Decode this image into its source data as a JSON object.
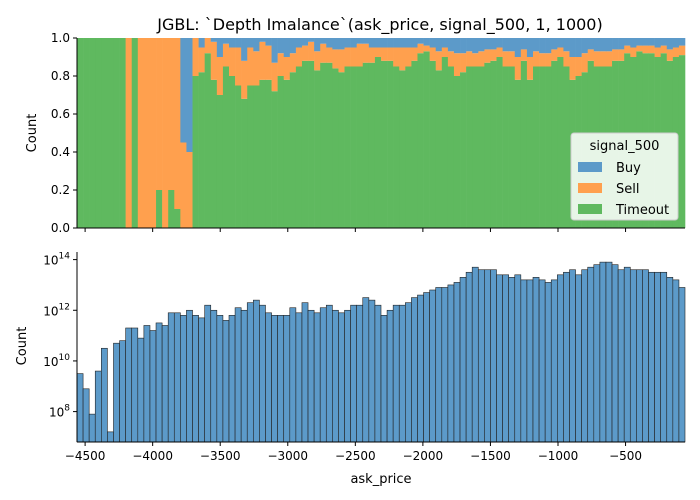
{
  "title": "JGBL: `Depth Imalance`(ask_price, signal_500, 1, 1000)",
  "colors": {
    "Buy": "#5c9ac9",
    "Sell": "#ffa04e",
    "Timeout": "#5fb95f",
    "hist": "#5c9ac9",
    "edge": "#222222"
  },
  "chart_data": [
    {
      "type": "bar",
      "name": "proportion-stacked-histogram",
      "xlim": [
        -4560,
        -60
      ],
      "ylim": [
        0,
        1
      ],
      "ylabel": "Count",
      "yticks": [
        0.0,
        0.2,
        0.4,
        0.6,
        0.8,
        1.0
      ],
      "ytick_labels": [
        "0.0",
        "0.2",
        "0.4",
        "0.6",
        "0.8",
        "1.0"
      ],
      "bin_start": -4560,
      "bin_width": 45,
      "legend": {
        "title": "signal_500",
        "entries": [
          "Buy",
          "Sell",
          "Timeout"
        ],
        "placement": "right"
      },
      "series": [
        {
          "name": "Timeout",
          "values": [
            1.0,
            1.0,
            1.0,
            1.0,
            1.0,
            1.0,
            1.0,
            1.0,
            0.0,
            1.0,
            0.0,
            0.0,
            0.0,
            0.2,
            0.0,
            0.2,
            0.1,
            0.0,
            0.0,
            0.8,
            0.82,
            0.92,
            0.78,
            0.7,
            0.85,
            0.8,
            0.75,
            0.68,
            0.75,
            0.75,
            0.78,
            0.78,
            0.72,
            0.8,
            0.78,
            0.82,
            0.85,
            0.88,
            0.88,
            0.83,
            0.87,
            0.87,
            0.84,
            0.82,
            0.85,
            0.85,
            0.85,
            0.87,
            0.87,
            0.9,
            0.88,
            0.88,
            0.85,
            0.83,
            0.85,
            0.88,
            0.92,
            0.93,
            0.88,
            0.83,
            0.9,
            0.85,
            0.8,
            0.82,
            0.85,
            0.85,
            0.85,
            0.87,
            0.88,
            0.9,
            0.85,
            0.85,
            0.78,
            0.88,
            0.78,
            0.85,
            0.85,
            0.85,
            0.88,
            0.9,
            0.85,
            0.78,
            0.8,
            0.82,
            0.88,
            0.85,
            0.85,
            0.85,
            0.88,
            0.88,
            0.92,
            0.9,
            0.93,
            0.92,
            0.92,
            0.9,
            0.92,
            0.88,
            0.9,
            0.91
          ]
        },
        {
          "name": "Sell",
          "values": [
            0.0,
            0.0,
            0.0,
            0.0,
            0.0,
            0.0,
            0.0,
            0.0,
            1.0,
            0.0,
            1.0,
            1.0,
            1.0,
            0.8,
            1.0,
            0.8,
            0.9,
            0.45,
            0.4,
            0.2,
            0.13,
            0.08,
            0.2,
            0.2,
            0.12,
            0.15,
            0.2,
            0.2,
            0.2,
            0.18,
            0.2,
            0.18,
            0.15,
            0.12,
            0.12,
            0.1,
            0.1,
            0.08,
            0.1,
            0.1,
            0.1,
            0.08,
            0.1,
            0.12,
            0.1,
            0.1,
            0.12,
            0.1,
            0.08,
            0.05,
            0.07,
            0.07,
            0.1,
            0.12,
            0.1,
            0.07,
            0.05,
            0.03,
            0.07,
            0.1,
            0.05,
            0.08,
            0.12,
            0.1,
            0.08,
            0.07,
            0.08,
            0.07,
            0.06,
            0.05,
            0.08,
            0.08,
            0.12,
            0.06,
            0.12,
            0.08,
            0.07,
            0.07,
            0.06,
            0.05,
            0.08,
            0.12,
            0.1,
            0.1,
            0.06,
            0.08,
            0.08,
            0.08,
            0.06,
            0.06,
            0.04,
            0.05,
            0.03,
            0.04,
            0.04,
            0.05,
            0.04,
            0.06,
            0.05,
            0.05
          ]
        },
        {
          "name": "Buy",
          "values": [
            0.0,
            0.0,
            0.0,
            0.0,
            0.0,
            0.0,
            0.0,
            0.0,
            0.0,
            0.0,
            0.0,
            0.0,
            0.0,
            0.0,
            0.0,
            0.0,
            0.0,
            0.55,
            0.6,
            0.0,
            0.05,
            0.0,
            0.02,
            0.1,
            0.03,
            0.05,
            0.05,
            0.12,
            0.05,
            0.07,
            0.02,
            0.04,
            0.13,
            0.08,
            0.1,
            0.08,
            0.05,
            0.04,
            0.02,
            0.07,
            0.03,
            0.05,
            0.06,
            0.06,
            0.05,
            0.05,
            0.03,
            0.03,
            0.05,
            0.05,
            0.05,
            0.05,
            0.05,
            0.05,
            0.05,
            0.05,
            0.03,
            0.04,
            0.05,
            0.07,
            0.05,
            0.07,
            0.08,
            0.08,
            0.07,
            0.08,
            0.07,
            0.06,
            0.06,
            0.05,
            0.07,
            0.07,
            0.1,
            0.06,
            0.1,
            0.07,
            0.08,
            0.08,
            0.06,
            0.05,
            0.07,
            0.1,
            0.1,
            0.08,
            0.06,
            0.07,
            0.07,
            0.07,
            0.06,
            0.06,
            0.04,
            0.05,
            0.04,
            0.04,
            0.04,
            0.05,
            0.04,
            0.06,
            0.05,
            0.04
          ]
        }
      ]
    },
    {
      "type": "bar",
      "name": "count-histogram-log",
      "xlim": [
        -4560,
        -60
      ],
      "xlabel": "ask_price",
      "ylabel": "Count",
      "yscale": "log",
      "ylim_log10": [
        6.8,
        14.3
      ],
      "yticks_exp": [
        8,
        10,
        12,
        14
      ],
      "bin_start": -4560,
      "bin_width": 45,
      "xticks": [
        -4500,
        -4000,
        -3500,
        -3000,
        -2500,
        -2000,
        -1500,
        -1000,
        -500
      ],
      "xtick_labels": [
        "−4500",
        "−4000",
        "−3500",
        "−3000",
        "−2500",
        "−2000",
        "−1500",
        "−1000",
        "−500"
      ],
      "log10_values": [
        9.5,
        8.9,
        7.9,
        9.6,
        10.5,
        7.2,
        10.7,
        10.8,
        11.3,
        11.3,
        10.9,
        11.4,
        11.2,
        11.5,
        11.4,
        11.9,
        11.9,
        11.8,
        12.0,
        11.8,
        11.7,
        12.2,
        12.0,
        11.8,
        11.6,
        11.8,
        12.1,
        12.0,
        12.3,
        12.4,
        12.2,
        11.9,
        11.8,
        11.8,
        11.8,
        12.1,
        11.9,
        12.3,
        12.0,
        11.9,
        12.1,
        12.2,
        12.0,
        11.9,
        12.0,
        12.2,
        12.2,
        12.5,
        12.4,
        12.2,
        11.8,
        12.0,
        12.2,
        12.2,
        12.3,
        12.5,
        12.6,
        12.7,
        12.8,
        12.9,
        12.9,
        13.0,
        13.1,
        13.3,
        13.5,
        13.7,
        13.6,
        13.6,
        13.6,
        13.4,
        13.4,
        13.3,
        13.4,
        13.2,
        13.2,
        13.3,
        13.2,
        13.1,
        13.2,
        13.4,
        13.5,
        13.6,
        13.4,
        13.6,
        13.7,
        13.8,
        13.9,
        13.9,
        13.8,
        13.6,
        13.7,
        13.6,
        13.6,
        13.6,
        13.5,
        13.5,
        13.5,
        13.3,
        13.2,
        12.9
      ]
    }
  ]
}
